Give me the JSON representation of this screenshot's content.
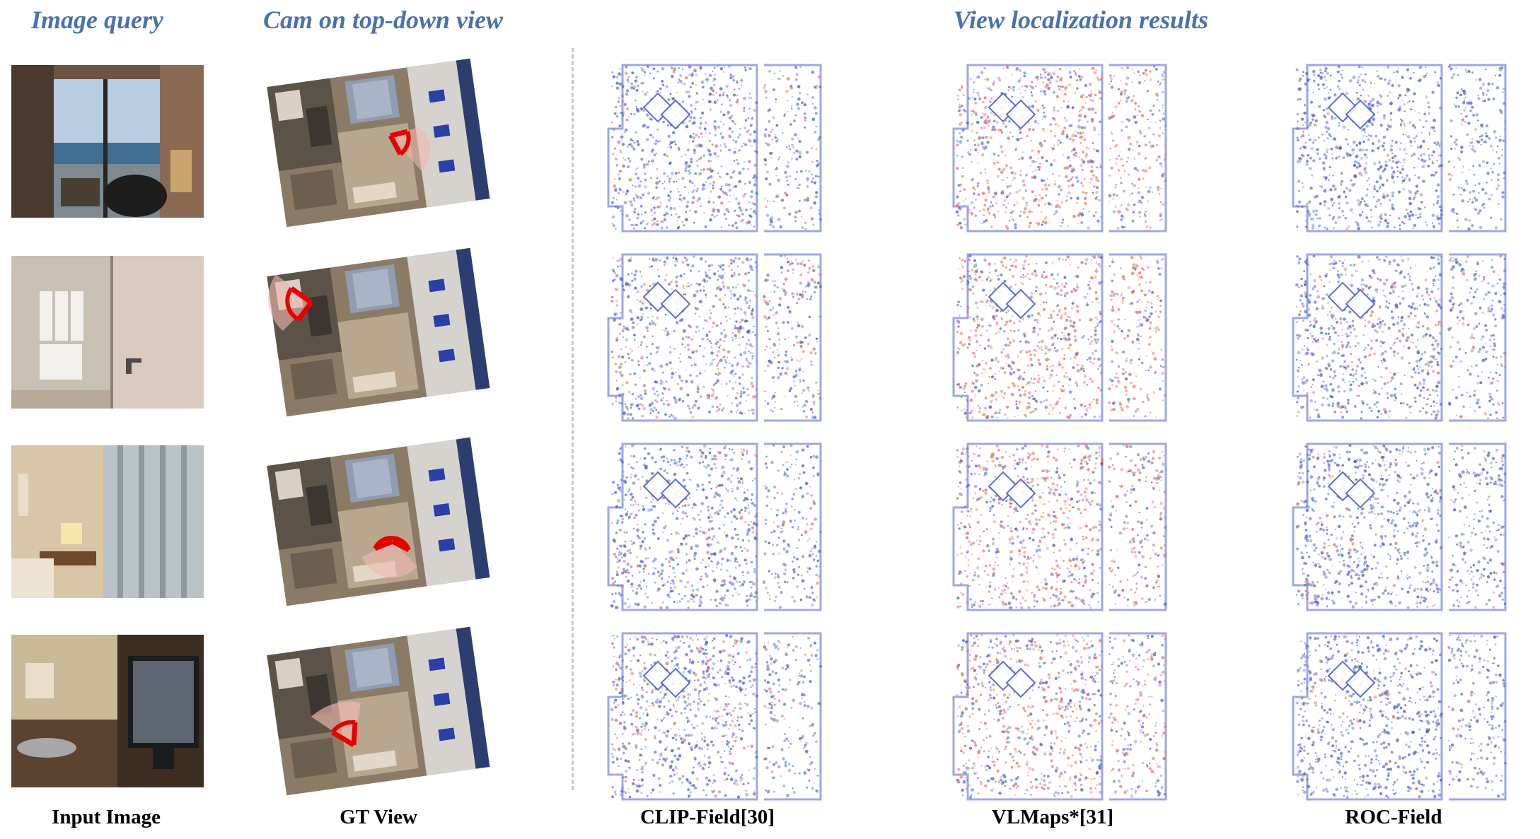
{
  "headers": {
    "image_query": "Image query",
    "cam_view": "Cam on top-down view",
    "localization": "View localization results"
  },
  "column_labels": {
    "input": "Input Image",
    "gt": "GT View",
    "clip": "CLIP-Field[30]",
    "vlmaps": "VLMaps*[31]",
    "roc": "ROC-Field"
  },
  "rows": [
    {
      "query": "balcony-sea-view-image",
      "camera": "bottom-right-lounge",
      "red_ratio": {
        "clip": 0.18,
        "vlmaps": 0.55,
        "roc": 0.06
      }
    },
    {
      "query": "bathroom-towel-rack-image",
      "camera": "top-left-bathroom",
      "red_ratio": {
        "clip": 0.25,
        "vlmaps": 0.6,
        "roc": 0.2
      }
    },
    {
      "query": "bedroom-desk-curtain-image",
      "camera": "right-window-area",
      "red_ratio": {
        "clip": 0.15,
        "vlmaps": 0.55,
        "roc": 0.08
      }
    },
    {
      "query": "kitchenette-tv-image",
      "camera": "bottom-left-kitchenette",
      "red_ratio": {
        "clip": 0.2,
        "vlmaps": 0.5,
        "roc": 0.1
      }
    }
  ],
  "colors": {
    "header": "#4a72aa",
    "cloud_blue": "#4b5fd6",
    "cloud_red": "#e8705a",
    "camera_frustum": "#e60000"
  }
}
